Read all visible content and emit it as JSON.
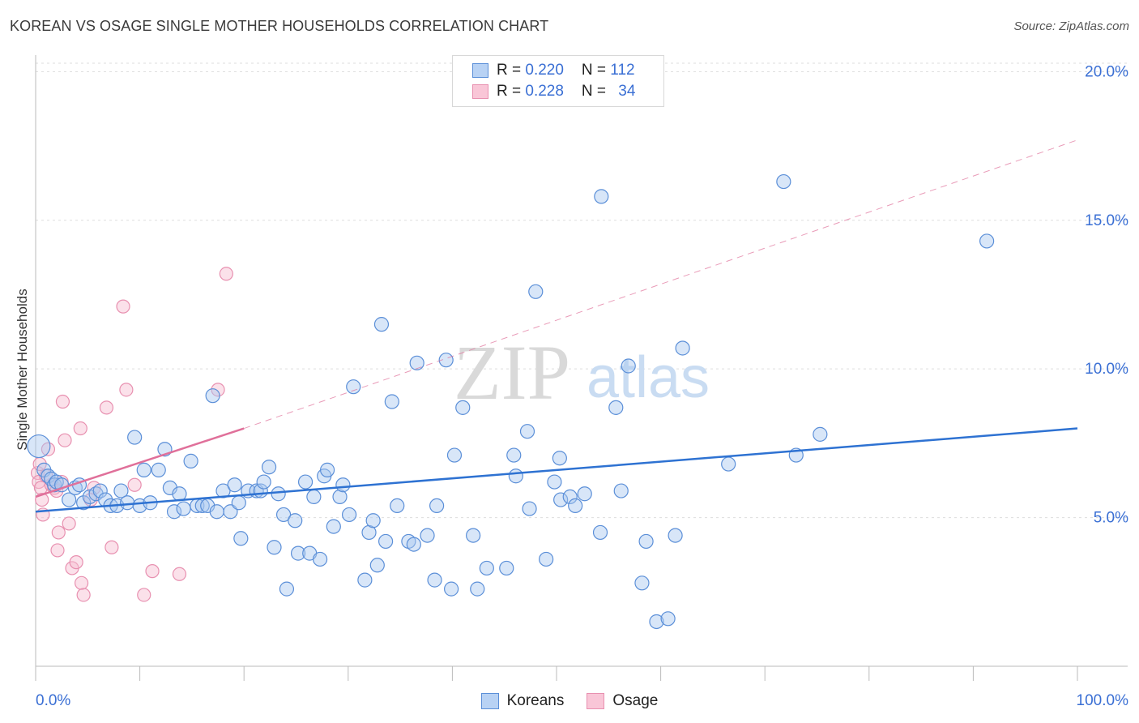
{
  "title": "KOREAN VS OSAGE SINGLE MOTHER HOUSEHOLDS CORRELATION CHART",
  "source": "Source: ZipAtlas.com",
  "watermark": {
    "zip": "ZIP",
    "atlas": "atlas"
  },
  "colors": {
    "koreans_fill": "#a8c8f0",
    "koreans_stroke": "#5b8fd8",
    "koreans_line": "#2e72d2",
    "osage_fill": "#f6bcd0",
    "osage_stroke": "#e890b0",
    "osage_line": "#e0709a",
    "axis_label": "#3a6fd4",
    "grid": "#dddddd"
  },
  "legend_top": {
    "rows": [
      {
        "r_label": "R = ",
        "r_value": "0.220",
        "n_label": "N = ",
        "n_value": "112"
      },
      {
        "r_label": "R = ",
        "r_value": "0.228",
        "n_label": "N = ",
        "n_value": "34"
      }
    ]
  },
  "legend_bottom": {
    "koreans": "Koreans",
    "osage": "Osage"
  },
  "chart_data": {
    "type": "scatter",
    "title": "KOREAN VS OSAGE SINGLE MOTHER HOUSEHOLDS CORRELATION CHART",
    "xlabel": "",
    "ylabel": "Single Mother Households",
    "xlim": [
      0,
      100
    ],
    "ylim": [
      0,
      20.5
    ],
    "x_tick_labels": [
      "0.0%",
      "100.0%"
    ],
    "y_ticks": [
      5,
      10,
      15,
      20
    ],
    "y_tick_labels": [
      "5.0%",
      "10.0%",
      "15.0%",
      "20.0%"
    ],
    "grid": true,
    "series": [
      {
        "name": "Koreans",
        "R": 0.22,
        "N": 112,
        "trend": {
          "x": [
            0,
            100
          ],
          "y": [
            5.2,
            8.0
          ],
          "style": "solid"
        },
        "points": [
          [
            0.3,
            7.4
          ],
          [
            0.8,
            6.6
          ],
          [
            1.2,
            6.4
          ],
          [
            1.5,
            6.3
          ],
          [
            1.8,
            6.1
          ],
          [
            2.0,
            6.2
          ],
          [
            2.5,
            6.1
          ],
          [
            3.2,
            5.6
          ],
          [
            3.8,
            6.0
          ],
          [
            4.2,
            6.1
          ],
          [
            4.6,
            5.5
          ],
          [
            5.2,
            5.7
          ],
          [
            5.8,
            5.8
          ],
          [
            6.2,
            5.9
          ],
          [
            6.7,
            5.6
          ],
          [
            7.2,
            5.4
          ],
          [
            7.8,
            5.4
          ],
          [
            8.2,
            5.9
          ],
          [
            8.8,
            5.5
          ],
          [
            9.5,
            7.7
          ],
          [
            10.0,
            5.4
          ],
          [
            10.4,
            6.6
          ],
          [
            11.0,
            5.5
          ],
          [
            11.8,
            6.6
          ],
          [
            12.4,
            7.3
          ],
          [
            12.9,
            6.0
          ],
          [
            13.3,
            5.2
          ],
          [
            13.8,
            5.8
          ],
          [
            14.2,
            5.3
          ],
          [
            14.9,
            6.9
          ],
          [
            15.5,
            5.4
          ],
          [
            16.0,
            5.4
          ],
          [
            16.5,
            5.4
          ],
          [
            17.0,
            9.1
          ],
          [
            17.4,
            5.2
          ],
          [
            18.0,
            5.9
          ],
          [
            18.7,
            5.2
          ],
          [
            19.1,
            6.1
          ],
          [
            19.5,
            5.5
          ],
          [
            19.7,
            4.3
          ],
          [
            20.4,
            5.9
          ],
          [
            21.2,
            5.9
          ],
          [
            21.6,
            5.9
          ],
          [
            21.9,
            6.2
          ],
          [
            22.4,
            6.7
          ],
          [
            22.9,
            4.0
          ],
          [
            23.3,
            5.8
          ],
          [
            23.8,
            5.1
          ],
          [
            24.1,
            2.6
          ],
          [
            24.9,
            4.9
          ],
          [
            25.2,
            3.8
          ],
          [
            25.9,
            6.2
          ],
          [
            26.3,
            3.8
          ],
          [
            26.7,
            5.7
          ],
          [
            27.3,
            3.6
          ],
          [
            27.7,
            6.4
          ],
          [
            28.0,
            6.6
          ],
          [
            28.6,
            4.7
          ],
          [
            29.2,
            5.7
          ],
          [
            29.5,
            6.1
          ],
          [
            30.1,
            5.1
          ],
          [
            30.5,
            9.4
          ],
          [
            31.6,
            2.9
          ],
          [
            32.0,
            4.5
          ],
          [
            32.4,
            4.9
          ],
          [
            32.8,
            3.4
          ],
          [
            33.2,
            11.5
          ],
          [
            33.6,
            4.2
          ],
          [
            34.2,
            8.9
          ],
          [
            34.7,
            5.4
          ],
          [
            35.8,
            4.2
          ],
          [
            36.3,
            4.1
          ],
          [
            36.6,
            10.2
          ],
          [
            37.6,
            4.4
          ],
          [
            38.3,
            2.9
          ],
          [
            38.5,
            5.4
          ],
          [
            39.4,
            10.3
          ],
          [
            39.9,
            2.6
          ],
          [
            40.2,
            7.1
          ],
          [
            41.0,
            8.7
          ],
          [
            42.0,
            4.4
          ],
          [
            42.4,
            2.6
          ],
          [
            43.3,
            3.3
          ],
          [
            45.2,
            3.3
          ],
          [
            45.9,
            7.1
          ],
          [
            46.1,
            6.4
          ],
          [
            47.2,
            7.9
          ],
          [
            47.4,
            5.3
          ],
          [
            48.0,
            12.6
          ],
          [
            49.0,
            3.6
          ],
          [
            49.8,
            6.2
          ],
          [
            50.3,
            7.0
          ],
          [
            50.4,
            5.6
          ],
          [
            51.3,
            5.7
          ],
          [
            51.8,
            5.4
          ],
          [
            52.7,
            5.8
          ],
          [
            54.2,
            4.5
          ],
          [
            54.3,
            15.8
          ],
          [
            55.7,
            8.7
          ],
          [
            56.2,
            5.9
          ],
          [
            56.9,
            10.1
          ],
          [
            58.2,
            2.8
          ],
          [
            58.6,
            4.2
          ],
          [
            59.6,
            1.5
          ],
          [
            60.7,
            1.6
          ],
          [
            61.4,
            4.4
          ],
          [
            62.1,
            10.7
          ],
          [
            66.5,
            6.8
          ],
          [
            71.8,
            16.3
          ],
          [
            73.0,
            7.1
          ],
          [
            75.3,
            7.8
          ],
          [
            91.3,
            14.3
          ]
        ]
      },
      {
        "name": "Osage",
        "R": 0.228,
        "N": 34,
        "trend": {
          "x": [
            0,
            20
          ],
          "y": [
            5.7,
            8.0
          ],
          "style": "solid",
          "extended": {
            "x": [
              20,
              100
            ],
            "y": [
              8.0,
              17.7
            ],
            "style": "dashed"
          }
        },
        "points": [
          [
            0.2,
            6.5
          ],
          [
            0.3,
            6.2
          ],
          [
            0.5,
            6.0
          ],
          [
            0.6,
            5.6
          ],
          [
            0.7,
            5.1
          ],
          [
            1.2,
            7.3
          ],
          [
            1.5,
            6.1
          ],
          [
            1.8,
            6.0
          ],
          [
            2.1,
            3.9
          ],
          [
            2.2,
            4.5
          ],
          [
            2.5,
            6.2
          ],
          [
            2.6,
            8.9
          ],
          [
            2.8,
            7.6
          ],
          [
            3.2,
            4.8
          ],
          [
            3.5,
            3.3
          ],
          [
            3.9,
            3.5
          ],
          [
            4.3,
            8.0
          ],
          [
            4.4,
            2.8
          ],
          [
            4.6,
            2.4
          ],
          [
            5.3,
            5.6
          ],
          [
            5.6,
            6.0
          ],
          [
            6.8,
            8.7
          ],
          [
            7.3,
            4.0
          ],
          [
            8.4,
            12.1
          ],
          [
            8.7,
            9.3
          ],
          [
            9.5,
            6.1
          ],
          [
            10.4,
            2.4
          ],
          [
            11.2,
            3.2
          ],
          [
            13.8,
            3.1
          ],
          [
            17.5,
            9.3
          ],
          [
            18.3,
            13.2
          ],
          [
            0.4,
            6.8
          ],
          [
            1.0,
            6.4
          ],
          [
            2.0,
            5.9
          ]
        ]
      }
    ]
  }
}
